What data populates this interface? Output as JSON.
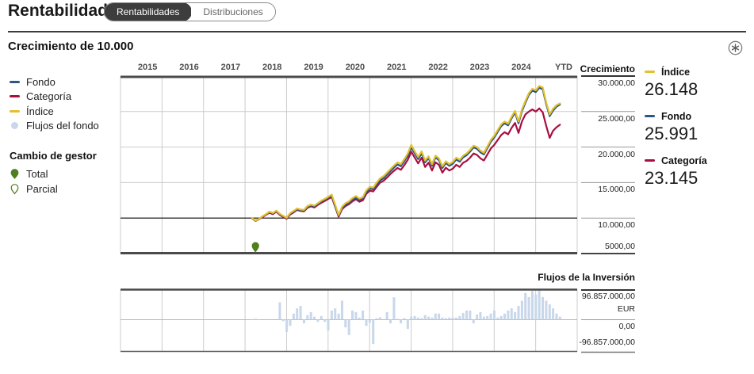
{
  "header": {
    "title": "Rentabilidad",
    "tabs": [
      {
        "label": "Rentabilidades",
        "selected": true
      },
      {
        "label": "Distribuciones",
        "selected": false
      }
    ]
  },
  "section": {
    "title": "Crecimiento de 10.000",
    "options_icon": "asterisk-circle-icon"
  },
  "colors": {
    "fondo": "#2b5687",
    "categoria": "#a80f3f",
    "indice": "#e2c12f",
    "flujos": "#c8d7ea",
    "manager_green": "#4f7f1e",
    "grid": "#cccccc",
    "axis_dark": "#4a4a4a",
    "zero_black": "#000000"
  },
  "legend": {
    "series": [
      {
        "label": "Fondo",
        "color": "#2b5687",
        "marker": "dash"
      },
      {
        "label": "Categoría",
        "color": "#a80f3f",
        "marker": "dash"
      },
      {
        "label": "Índice",
        "color": "#e2c12f",
        "marker": "dash"
      },
      {
        "label": "Flujos del fondo",
        "color": "#c8d7ea",
        "marker": "circle"
      }
    ],
    "manager_change": {
      "title": "Cambio de gestor",
      "items": [
        {
          "label": "Total",
          "style": "filled"
        },
        {
          "label": "Parcial",
          "style": "outline"
        }
      ]
    }
  },
  "growth_panel": {
    "axis_title": "Crecimiento",
    "x_labels": [
      "2015",
      "2016",
      "2017",
      "2018",
      "2019",
      "2020",
      "2021",
      "2022",
      "2023",
      "2024",
      "YTD"
    ],
    "y_tick_labels": [
      "30.000,00",
      "25.000,00",
      "20.000,00",
      "15.000,00",
      "10.000,00",
      "5000,00"
    ]
  },
  "summary": [
    {
      "label": "Índice",
      "value": "26.148",
      "color": "#e2c12f"
    },
    {
      "label": "Fondo",
      "value": "25.991",
      "color": "#2b5687"
    },
    {
      "label": "Categoría",
      "value": "23.145",
      "color": "#a80f3f"
    }
  ],
  "flows_panel": {
    "title": "Flujos de la Inversión",
    "y_tick_labels": [
      "96.857.000,00",
      "EUR",
      "0,00",
      "-96.857.000,00"
    ]
  },
  "chart_data": [
    {
      "type": "line",
      "title": "Crecimiento de 10.000",
      "x_axis_years": [
        2015,
        2016,
        2017,
        2018,
        2019,
        2020,
        2021,
        2022,
        2023,
        2024,
        "YTD"
      ],
      "x_range": [
        2015,
        2026
      ],
      "x_start": 2018.17,
      "x_step": 0.08333,
      "ylim": [
        5000,
        30000
      ],
      "y_ticks": [
        30000,
        25000,
        20000,
        15000,
        10000,
        5000
      ],
      "grid": true,
      "legend_position": "left",
      "series": [
        {
          "name": "Índice",
          "color": "#e2c12f",
          "final_value": 26148,
          "values": [
            10000,
            9650,
            9900,
            10250,
            10550,
            10900,
            10700,
            11050,
            10600,
            10300,
            10050,
            10700,
            11000,
            11350,
            11200,
            11150,
            11700,
            11900,
            11750,
            12100,
            12450,
            12700,
            13000,
            13300,
            11900,
            10450,
            11600,
            12100,
            12350,
            12800,
            13100,
            12750,
            12950,
            13900,
            14400,
            14300,
            15000,
            15600,
            15900,
            16400,
            16900,
            17400,
            17850,
            17600,
            18300,
            19100,
            20300,
            19400,
            18600,
            19400,
            18100,
            18700,
            17600,
            18800,
            18400,
            17300,
            18000,
            17600,
            17900,
            18500,
            18200,
            18800,
            19100,
            19600,
            20200,
            20000,
            19500,
            19200,
            20100,
            21000,
            21600,
            22400,
            23200,
            23600,
            23300,
            24300,
            25100,
            23600,
            25300,
            26500,
            27600,
            28200,
            28000,
            28600,
            28400,
            26300,
            24600,
            25400,
            25900,
            26148
          ]
        },
        {
          "name": "Fondo",
          "color": "#2b5687",
          "final_value": 25991,
          "values": [
            9980,
            9630,
            9880,
            10220,
            10520,
            10860,
            10660,
            11000,
            10550,
            10250,
            10000,
            10630,
            10920,
            11270,
            11110,
            11060,
            11600,
            11800,
            11640,
            11990,
            12340,
            12580,
            12860,
            13150,
            11720,
            10350,
            11420,
            11920,
            12150,
            12600,
            12900,
            12550,
            12750,
            13680,
            14150,
            14050,
            14720,
            15300,
            15600,
            16100,
            16600,
            17100,
            17550,
            17300,
            18000,
            18800,
            19950,
            19100,
            18300,
            19100,
            17850,
            18450,
            17350,
            18550,
            18150,
            17050,
            17750,
            17350,
            17650,
            18250,
            17950,
            18550,
            18850,
            19350,
            19950,
            19750,
            19250,
            18950,
            19850,
            20750,
            21350,
            22150,
            22950,
            23350,
            23050,
            24050,
            24850,
            23350,
            25050,
            26250,
            27350,
            27950,
            27750,
            28350,
            28150,
            26050,
            24350,
            25150,
            25700,
            25991
          ]
        },
        {
          "name": "Categoría",
          "color": "#a80f3f",
          "final_value": 23145,
          "values": [
            9950,
            9600,
            9850,
            10150,
            10450,
            10750,
            10550,
            10900,
            10450,
            10150,
            9900,
            10500,
            10800,
            11150,
            11000,
            10950,
            11450,
            11650,
            11500,
            11850,
            12150,
            12400,
            12700,
            12950,
            11600,
            10200,
            11250,
            11700,
            11950,
            12350,
            12650,
            12300,
            12500,
            13400,
            13850,
            13750,
            14400,
            15000,
            15250,
            15700,
            16200,
            16650,
            17050,
            16800,
            17450,
            18200,
            19350,
            18500,
            17700,
            18500,
            17200,
            17800,
            16700,
            17850,
            17500,
            16400,
            17100,
            16700,
            16950,
            17500,
            17200,
            17800,
            18050,
            18500,
            19100,
            18900,
            18400,
            18100,
            18950,
            19800,
            20300,
            21000,
            21700,
            22100,
            21800,
            22700,
            23400,
            22000,
            23600,
            24600,
            25000,
            25300,
            25000,
            25450,
            24900,
            23000,
            21300,
            22300,
            22800,
            23145
          ]
        }
      ],
      "manager_change_markers": [
        {
          "type": "Total",
          "x": 2018.25
        }
      ]
    },
    {
      "type": "bar",
      "title": "Flujos de la Inversión",
      "unit": "EUR",
      "ylim_millions": [
        -96.857,
        96.857
      ],
      "y_ticks_millions": [
        96.857,
        0,
        -96.857
      ],
      "x_start": 2018.17,
      "x_step": 0.08333,
      "bar_color": "#c8d7ea",
      "values_millions": [
        2,
        3,
        1.5,
        0,
        0,
        2,
        0,
        0,
        57,
        -5,
        -40,
        -20,
        20,
        37,
        45,
        -12,
        15,
        25,
        10,
        -7,
        12,
        -7,
        -35,
        30,
        37,
        20,
        62,
        -25,
        -50,
        30,
        25,
        7,
        30,
        -20,
        -10,
        -79,
        5,
        8,
        0,
        25,
        -12,
        73,
        3,
        -12,
        5,
        -30,
        10,
        12,
        7,
        5,
        15,
        10,
        7,
        20,
        20,
        7,
        5,
        7,
        7,
        7,
        12,
        22,
        30,
        30,
        -12,
        17,
        25,
        10,
        12,
        20,
        30,
        7,
        12,
        20,
        30,
        37,
        25,
        45,
        62,
        87,
        74,
        94,
        82,
        96.857,
        74,
        62,
        50,
        37,
        20,
        10
      ]
    }
  ]
}
